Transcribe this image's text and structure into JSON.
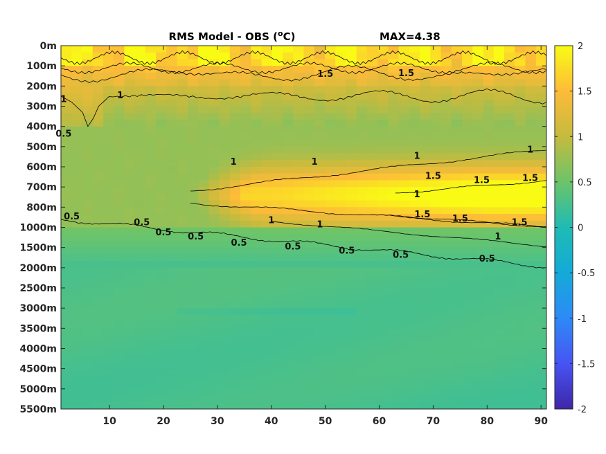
{
  "chart_data": {
    "type": "heatmap",
    "title": "RMS Model - OBS (°C)",
    "title_parts": {
      "prefix": "RMS Model - OBS (",
      "superscript": "o",
      "suffix": "C)"
    },
    "max_annotation": "MAX=4.38",
    "xlabel": "",
    "ylabel": "",
    "xlim": [
      1,
      91
    ],
    "x_ticks": [
      10,
      20,
      30,
      40,
      50,
      60,
      70,
      80,
      90
    ],
    "y_ticks": [
      "0m",
      "100m",
      "200m",
      "300m",
      "400m",
      "500m",
      "600m",
      "700m",
      "800m",
      "1000m",
      "1500m",
      "2000m",
      "2500m",
      "3000m",
      "3500m",
      "4000m",
      "4500m",
      "5000m",
      "5500m"
    ],
    "colorbar": {
      "colormap": "parula",
      "range": [
        -2,
        2
      ],
      "ticks": [
        "2",
        "1.5",
        "1",
        "0.5",
        "0",
        "-0.5",
        "-1",
        "-1.5",
        "-2"
      ]
    },
    "contour_levels": [
      0.5,
      1,
      1.5
    ],
    "contour_labels": [
      {
        "text": "1.5",
        "x": 50,
        "y": 1.55
      },
      {
        "text": "1.5",
        "x": 65,
        "y": 1.5
      },
      {
        "text": "1",
        "x": 12,
        "y": 2.6
      },
      {
        "text": "1",
        "x": 1.5,
        "y": 2.8
      },
      {
        "text": "0.5",
        "x": 1.5,
        "y": 4.5
      },
      {
        "text": "1",
        "x": 33,
        "y": 5.9
      },
      {
        "text": "1",
        "x": 48,
        "y": 5.9
      },
      {
        "text": "1",
        "x": 67,
        "y": 5.6
      },
      {
        "text": "1",
        "x": 88,
        "y": 5.3
      },
      {
        "text": "1.5",
        "x": 70,
        "y": 6.6
      },
      {
        "text": "1.5",
        "x": 79,
        "y": 6.8
      },
      {
        "text": "1.5",
        "x": 88,
        "y": 6.7
      },
      {
        "text": "1",
        "x": 67,
        "y": 7.5
      },
      {
        "text": "1.5",
        "x": 68,
        "y": 8.5
      },
      {
        "text": "1.5",
        "x": 75,
        "y": 8.7
      },
      {
        "text": "1.5",
        "x": 86,
        "y": 8.9
      },
      {
        "text": "1",
        "x": 40,
        "y": 8.8
      },
      {
        "text": "1",
        "x": 49,
        "y": 9.0
      },
      {
        "text": "1",
        "x": 82,
        "y": 9.6
      },
      {
        "text": "0.5",
        "x": 3,
        "y": 8.6
      },
      {
        "text": "0.5",
        "x": 16,
        "y": 8.9
      },
      {
        "text": "0.5",
        "x": 20,
        "y": 9.4
      },
      {
        "text": "0.5",
        "x": 26,
        "y": 9.6
      },
      {
        "text": "0.5",
        "x": 34,
        "y": 9.9
      },
      {
        "text": "0.5",
        "x": 44,
        "y": 10.1
      },
      {
        "text": "0.5",
        "x": 54,
        "y": 10.3
      },
      {
        "text": "0.5",
        "x": 64,
        "y": 10.5
      },
      {
        "text": "0.5",
        "x": 80,
        "y": 10.7
      }
    ]
  }
}
